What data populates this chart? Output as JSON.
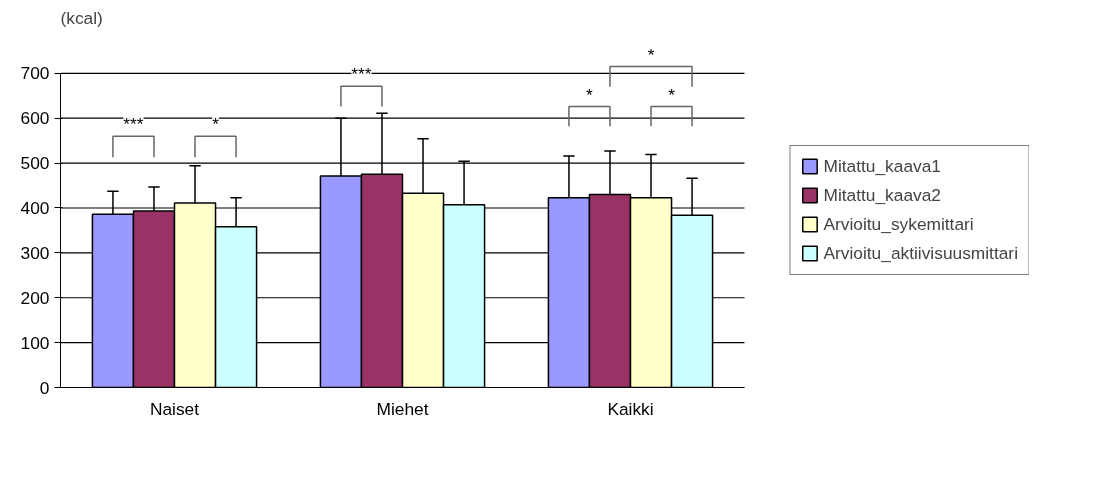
{
  "chart_data": {
    "type": "bar",
    "ylabel": "(kcal)",
    "categories": [
      "Naiset",
      "Miehet",
      "Kaikki"
    ],
    "series": [
      {
        "name": "Mitattu_kaava1",
        "color": "#9999ff",
        "values": [
          386,
          471,
          423
        ],
        "errors": [
          [
            386,
            437
          ],
          [
            471,
            600
          ],
          [
            423,
            516
          ]
        ]
      },
      {
        "name": "Mitattu_kaava2",
        "color": "#993366",
        "values": [
          393,
          475,
          430
        ],
        "errors": [
          [
            393,
            447
          ],
          [
            475,
            611
          ],
          [
            430,
            527
          ]
        ]
      },
      {
        "name": "Arvioitu_sykemittari",
        "color": "#ffffcc",
        "values": [
          411,
          433,
          423
        ],
        "errors": [
          [
            411,
            494
          ],
          [
            433,
            554
          ],
          [
            423,
            519
          ]
        ]
      },
      {
        "name": "Arvioitu_aktiivisuusmittari",
        "color": "#ccffff",
        "values": [
          358,
          407,
          384
        ],
        "errors": [
          [
            358,
            423
          ],
          [
            407,
            504
          ],
          [
            384,
            466
          ]
        ]
      }
    ],
    "ylim": [
      0,
      700
    ],
    "yticks": [
      0,
      100,
      200,
      300,
      400,
      500,
      600,
      700
    ],
    "grid": "y",
    "legend": "right",
    "annotations": [
      "***",
      "*",
      "***",
      "*",
      "*",
      "*"
    ]
  }
}
